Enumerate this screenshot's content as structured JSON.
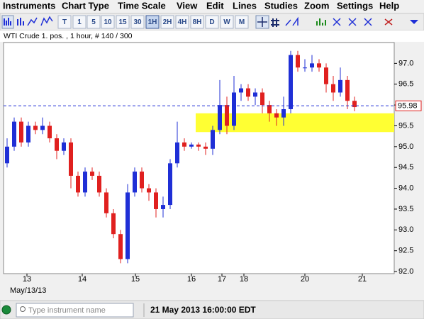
{
  "menu": [
    "Instruments",
    "Chart Type",
    "Time Scale",
    "View",
    "Edit",
    "Lines",
    "Studies",
    "Zoom",
    "Settings",
    "Help"
  ],
  "toolbar": [
    "T",
    "1",
    "5",
    "10",
    "15",
    "30",
    "1H",
    "2H",
    "4H",
    "8H",
    "D",
    "W",
    "M"
  ],
  "chart_data": {
    "type": "candlestick",
    "title": "WTI Crude 1. pos. , 1 hour, # 140 / 300",
    "open": [
      94.6,
      95.0,
      95.6,
      95.1,
      95.5,
      95.4,
      95.5,
      95.2,
      94.9,
      95.1,
      94.3,
      93.9,
      94.4,
      94.3,
      93.9,
      93.4,
      92.9,
      92.3,
      93.9,
      94.4,
      94.0,
      93.9,
      93.5,
      93.6,
      94.6,
      95.1,
      95.0,
      95.05,
      95.0,
      94.95,
      95.4,
      96.0,
      95.5,
      96.3,
      96.4,
      96.2,
      96.3,
      96.0,
      95.8,
      95.7,
      95.9,
      97.2,
      96.9,
      96.9,
      97.0,
      96.9,
      96.5,
      96.3,
      96.6,
      96.1
    ],
    "high": [
      95.2,
      95.7,
      95.7,
      95.6,
      95.6,
      95.7,
      95.6,
      95.3,
      95.2,
      95.2,
      94.4,
      94.5,
      94.5,
      94.4,
      94.0,
      93.5,
      93.0,
      94.1,
      94.5,
      94.5,
      94.1,
      94.0,
      93.8,
      94.7,
      95.6,
      95.2,
      95.1,
      95.1,
      95.1,
      95.5,
      96.6,
      96.2,
      96.7,
      96.5,
      96.5,
      96.4,
      96.4,
      96.1,
      95.9,
      96.2,
      97.3,
      97.3,
      97.1,
      97.2,
      97.1,
      97.0,
      96.7,
      96.9,
      96.7,
      96.2
    ],
    "low": [
      94.5,
      94.9,
      95.0,
      95.0,
      95.3,
      95.3,
      95.1,
      94.7,
      94.8,
      94.0,
      93.8,
      93.8,
      94.2,
      93.8,
      93.3,
      92.8,
      92.2,
      92.2,
      93.8,
      93.9,
      93.7,
      93.3,
      93.3,
      93.5,
      94.5,
      94.9,
      94.95,
      94.9,
      94.8,
      94.8,
      95.3,
      95.3,
      95.4,
      96.1,
      96.1,
      96.0,
      95.8,
      95.6,
      95.5,
      95.5,
      95.8,
      96.8,
      96.8,
      96.8,
      96.8,
      96.3,
      96.1,
      96.2,
      95.9,
      95.85
    ],
    "close": [
      95.0,
      95.6,
      95.1,
      95.5,
      95.4,
      95.5,
      95.2,
      94.9,
      95.1,
      94.3,
      93.9,
      94.4,
      94.3,
      93.9,
      93.4,
      92.9,
      92.3,
      93.9,
      94.4,
      94.0,
      93.9,
      93.5,
      93.6,
      94.6,
      95.1,
      95.0,
      95.05,
      95.0,
      94.95,
      95.4,
      96.0,
      95.5,
      96.3,
      96.4,
      96.2,
      96.3,
      96.0,
      95.8,
      95.7,
      95.9,
      97.2,
      96.9,
      96.9,
      97.0,
      96.9,
      96.5,
      96.3,
      96.6,
      96.1,
      95.95
    ],
    "up_color": "#1f2fd6",
    "down_color": "#e0201f",
    "ylim": [
      91.95,
      97.5
    ],
    "yticks": [
      {
        "value": 92,
        "label": "92.0"
      },
      92.5,
      {
        "value": 93,
        "label": "93.0"
      },
      93.5,
      {
        "value": 94,
        "label": "94.0"
      },
      94.5,
      {
        "value": 95,
        "label": "95.0"
      },
      95.5,
      {
        "value": 96,
        "label": "96.0"
      },
      96.5,
      {
        "value": 97,
        "label": "97.0"
      }
    ],
    "x_labels": [
      "13",
      "14",
      "15",
      "16",
      "17",
      "18",
      "20",
      "21"
    ],
    "date_label": "May/13/13",
    "last_price": 95.98,
    "zone": [
      95.35,
      95.8
    ],
    "zone_color": "#ffff33"
  },
  "status": {
    "placeholder": "Type instrument name",
    "datetime": "21 May 2013 16:00:00 EDT"
  }
}
